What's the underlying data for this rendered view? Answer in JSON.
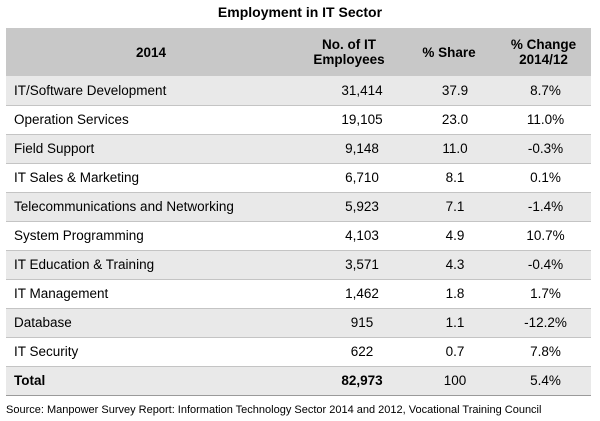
{
  "title": "Employment in IT Sector",
  "table": {
    "headers": {
      "category": "2014",
      "employees": "No. of IT Employees",
      "share": "% Share",
      "change": "% Change 2014/12"
    },
    "rows": [
      {
        "category": "IT/Software Development",
        "employees": "31,414",
        "share": "37.9",
        "change": "8.7%"
      },
      {
        "category": "Operation Services",
        "employees": "19,105",
        "share": "23.0",
        "change": "11.0%"
      },
      {
        "category": "Field Support",
        "employees": "9,148",
        "share": "11.0",
        "change": "-0.3%"
      },
      {
        "category": "IT Sales & Marketing",
        "employees": "6,710",
        "share": "8.1",
        "change": "0.1%"
      },
      {
        "category": "Telecommunications and Networking",
        "employees": "5,923",
        "share": "7.1",
        "change": "-1.4%"
      },
      {
        "category": "System Programming",
        "employees": "4,103",
        "share": "4.9",
        "change": "10.7%"
      },
      {
        "category": "IT Education & Training",
        "employees": "3,571",
        "share": "4.3",
        "change": "-0.4%"
      },
      {
        "category": "IT Management",
        "employees": "1,462",
        "share": "1.8",
        "change": "1.7%"
      },
      {
        "category": "Database",
        "employees": "915",
        "share": "1.1",
        "change": "-12.2%"
      },
      {
        "category": "IT Security",
        "employees": "622",
        "share": "0.7",
        "change": "7.8%"
      }
    ],
    "total": {
      "category": "Total",
      "employees": "82,973",
      "share": "100",
      "change": "5.4%"
    }
  },
  "source": "Source: Manpower Survey Report: Information Technology Sector 2014 and 2012, Vocational Training Council",
  "colors": {
    "header_bg": "#c8c8c8",
    "band_bg": "#e9e9e9"
  }
}
